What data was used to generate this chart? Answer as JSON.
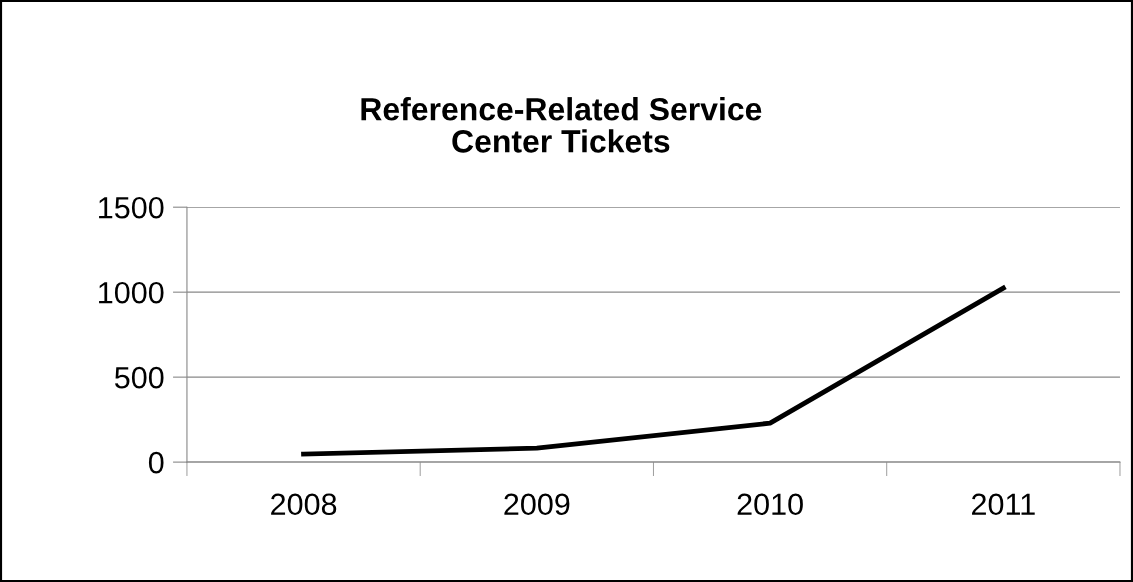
{
  "chart_data": {
    "type": "line",
    "title": "Reference-Related Service\nCenter Tickets",
    "categories": [
      "2008",
      "2009",
      "2010",
      "2011"
    ],
    "series": [
      {
        "color": "#000000",
        "values": [
          47,
          82,
          229,
          1024
        ]
      }
    ],
    "ylim": [
      0,
      1500
    ],
    "yticks": [
      0,
      500,
      1000,
      1500
    ],
    "grid": "y",
    "marker": "none",
    "line_style": "solid"
  }
}
